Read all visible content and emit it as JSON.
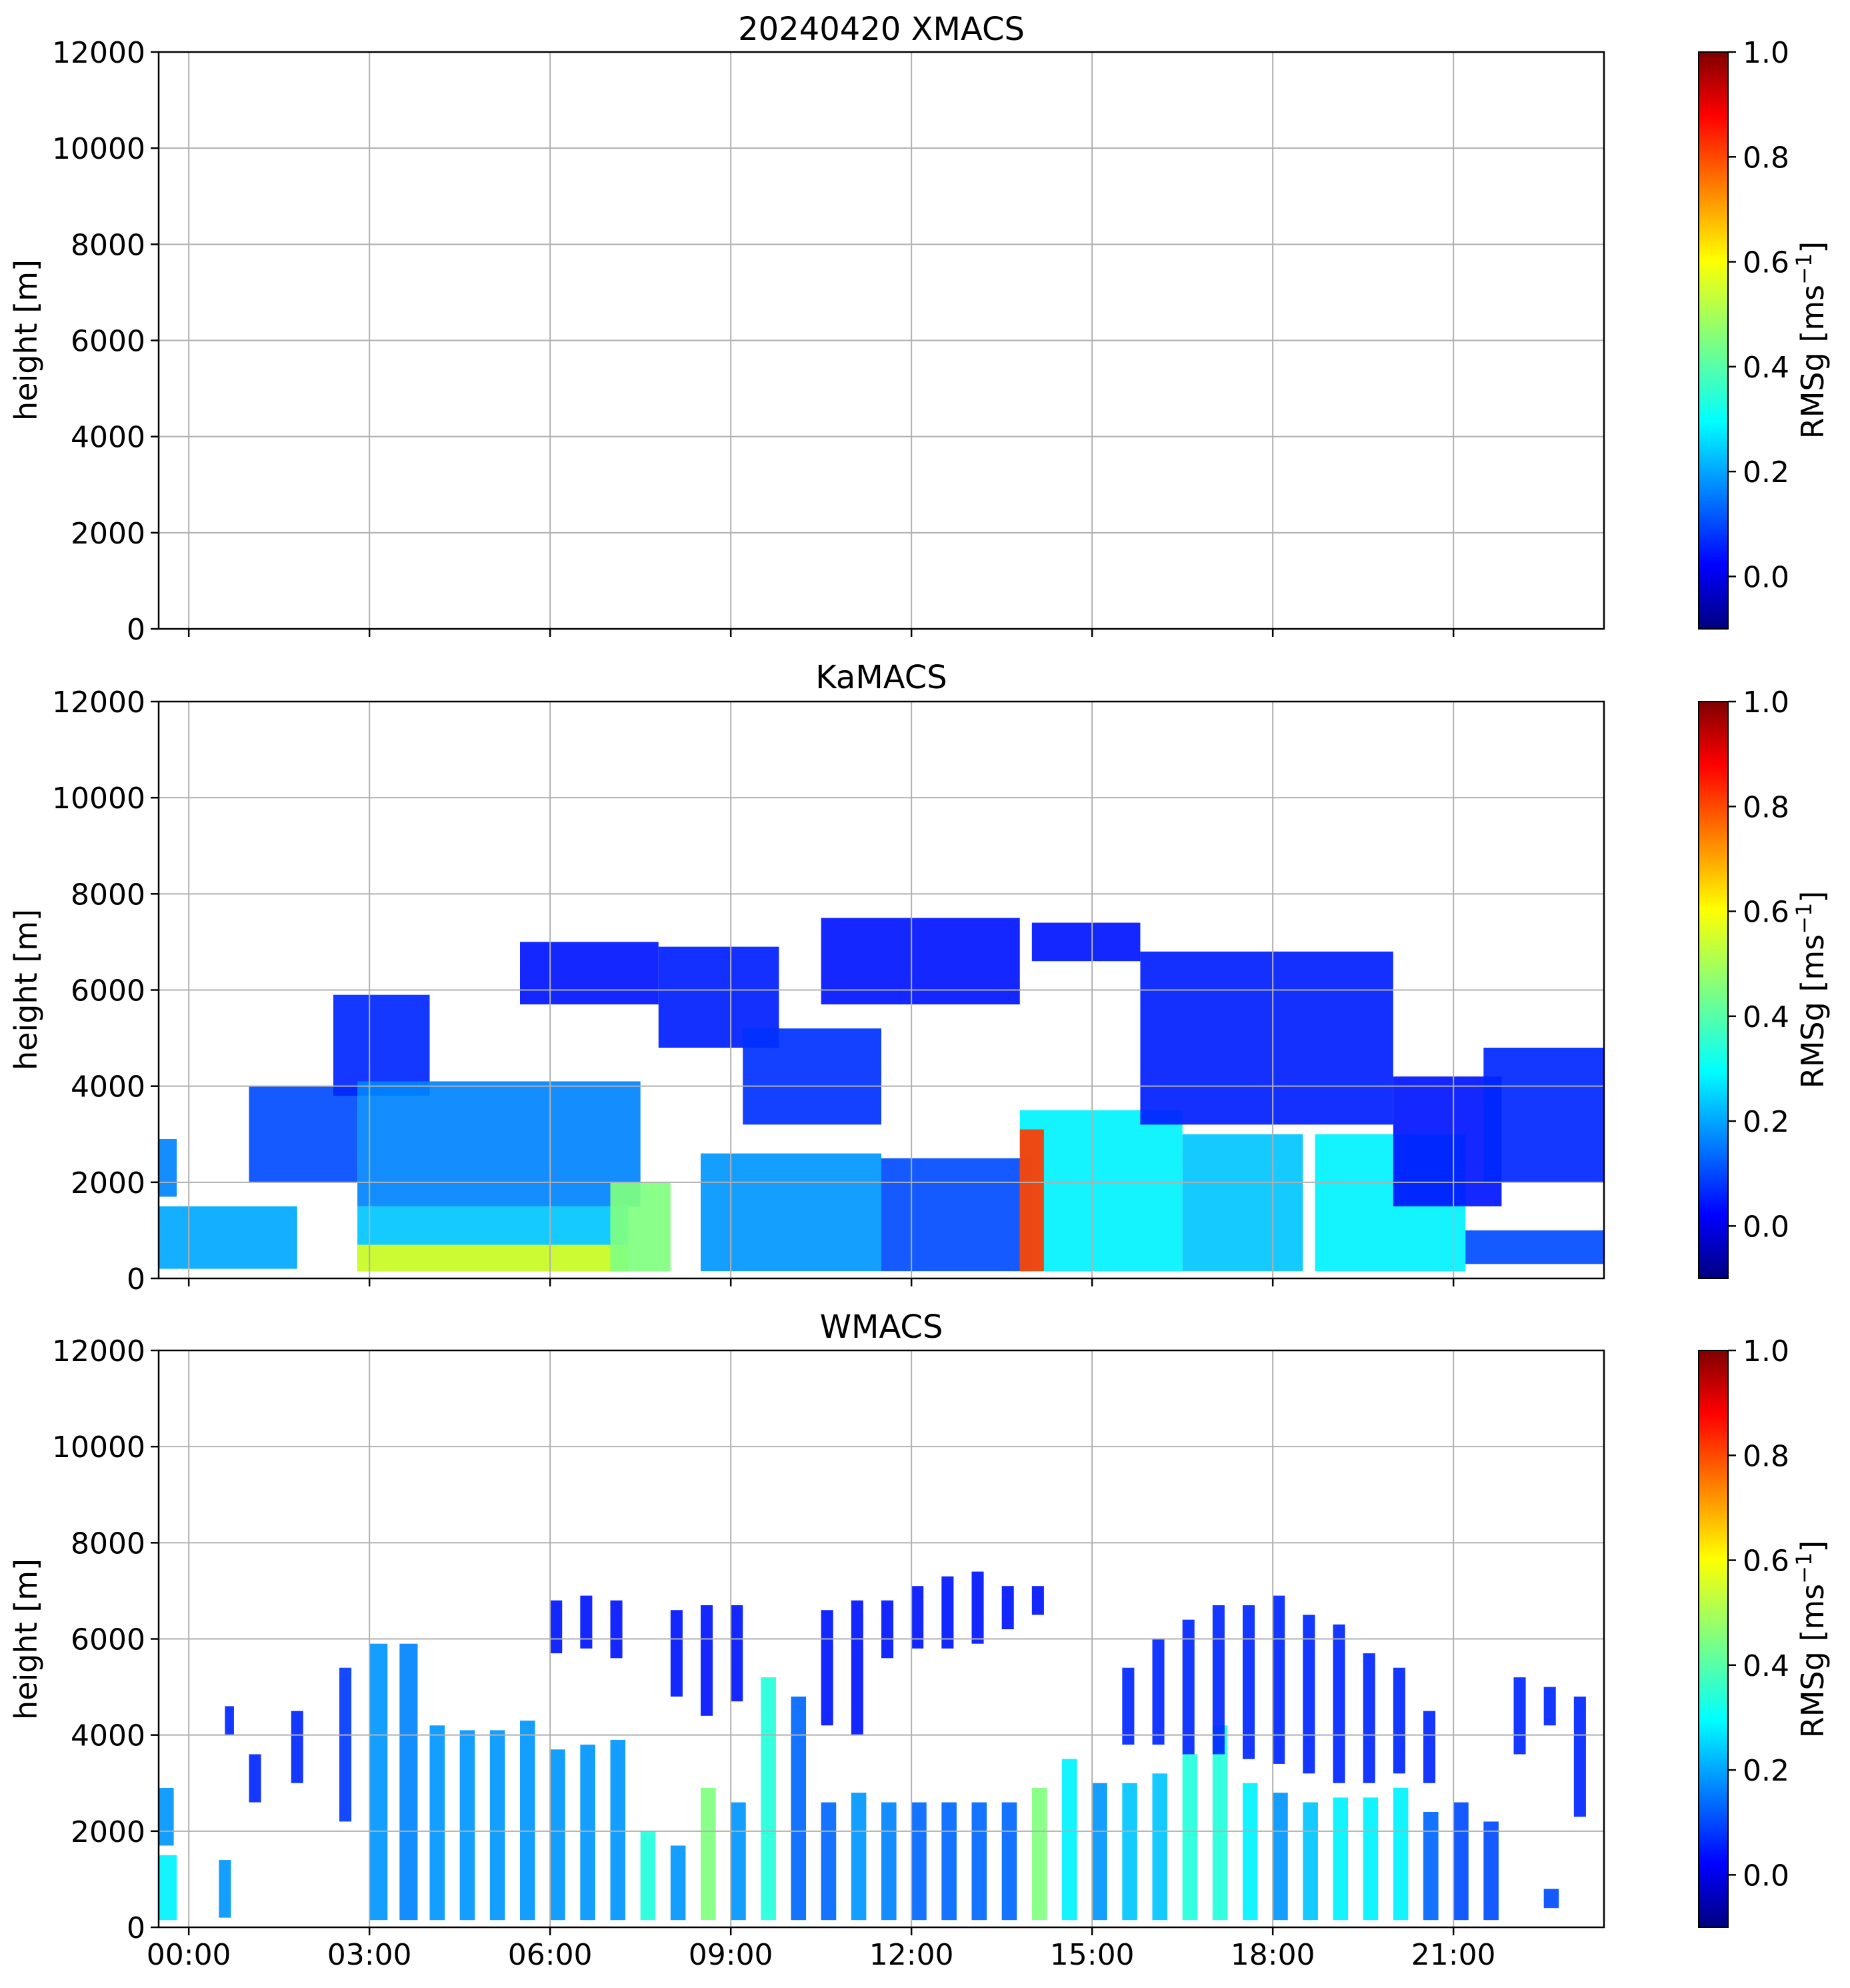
{
  "figure": {
    "panels": [
      {
        "title": "20240420 XMACS",
        "ylabel": "height [m]",
        "cbar_label": "RMSg [ms",
        "cbar_sup": "−1",
        "cbar_close": "]"
      },
      {
        "title": "KaMACS",
        "ylabel": "height [m]",
        "cbar_label": "RMSg [ms",
        "cbar_sup": "−1",
        "cbar_close": "]"
      },
      {
        "title": "WMACS",
        "ylabel": "height [m]",
        "cbar_label": "RMSg [ms",
        "cbar_sup": "−1",
        "cbar_close": "]"
      }
    ]
  },
  "chart_data": [
    {
      "type": "heatmap",
      "title": "20240420 XMACS",
      "ylabel": "height [m]",
      "ylim": [
        0,
        12000
      ],
      "yticks": [
        0,
        2000,
        4000,
        6000,
        8000,
        10000,
        12000
      ],
      "xlim_hours": [
        -0.5,
        23.5
      ],
      "xticks": [
        "00:00",
        "03:00",
        "06:00",
        "09:00",
        "12:00",
        "15:00",
        "18:00",
        "21:00"
      ],
      "xtick_labels_shown": false,
      "grid": true,
      "colormap": "jet",
      "colorbar": {
        "label": "RMSg [ms−1]",
        "range": [
          -0.1,
          1.0
        ],
        "ticks": [
          "0.0",
          "0.2",
          "0.4",
          "0.6",
          "0.8",
          "1.0"
        ]
      },
      "echo_regions": []
    },
    {
      "type": "heatmap",
      "title": "KaMACS",
      "ylabel": "height [m]",
      "ylim": [
        0,
        12000
      ],
      "yticks": [
        0,
        2000,
        4000,
        6000,
        8000,
        10000,
        12000
      ],
      "xlim_hours": [
        -0.5,
        23.5
      ],
      "xticks": [
        "00:00",
        "03:00",
        "06:00",
        "09:00",
        "12:00",
        "15:00",
        "18:00",
        "21:00"
      ],
      "xtick_labels_shown": false,
      "grid": true,
      "colormap": "jet",
      "colorbar": {
        "label": "RMSg [ms−1]",
        "range": [
          -0.1,
          1.0
        ],
        "ticks": [
          "0.0",
          "0.2",
          "0.4",
          "0.6",
          "0.8",
          "1.0"
        ]
      },
      "echo_regions": [
        {
          "t0": -0.5,
          "t1": -0.2,
          "z0": 1700,
          "z1": 2900,
          "rmsg": 0.18
        },
        {
          "t0": -0.5,
          "t1": 1.8,
          "z0": 200,
          "z1": 1500,
          "rmsg": 0.22
        },
        {
          "t0": 1.0,
          "t1": 2.8,
          "z0": 2000,
          "z1": 4000,
          "rmsg": 0.12
        },
        {
          "t0": 2.4,
          "t1": 4.0,
          "z0": 3800,
          "z1": 5900,
          "rmsg": 0.08
        },
        {
          "t0": 2.8,
          "t1": 7.5,
          "z0": 1500,
          "z1": 4100,
          "rmsg": 0.18
        },
        {
          "t0": 2.8,
          "t1": 7.3,
          "z0": 150,
          "z1": 1500,
          "rmsg": 0.25
        },
        {
          "t0": 2.8,
          "t1": 7.3,
          "z0": 150,
          "z1": 700,
          "rmsg": 0.55
        },
        {
          "t0": 7.0,
          "t1": 8.0,
          "z0": 150,
          "z1": 2000,
          "rmsg": 0.45
        },
        {
          "t0": 5.5,
          "t1": 7.8,
          "z0": 5700,
          "z1": 7000,
          "rmsg": 0.06
        },
        {
          "t0": 7.8,
          "t1": 9.8,
          "z0": 4800,
          "z1": 6900,
          "rmsg": 0.07
        },
        {
          "t0": 9.2,
          "t1": 11.5,
          "z0": 3200,
          "z1": 5200,
          "rmsg": 0.09
        },
        {
          "t0": 8.5,
          "t1": 11.5,
          "z0": 150,
          "z1": 2600,
          "rmsg": 0.2
        },
        {
          "t0": 10.5,
          "t1": 13.8,
          "z0": 5700,
          "z1": 7500,
          "rmsg": 0.06
        },
        {
          "t0": 11.5,
          "t1": 14.0,
          "z0": 150,
          "z1": 2500,
          "rmsg": 0.12
        },
        {
          "t0": 14.0,
          "t1": 15.8,
          "z0": 6600,
          "z1": 7400,
          "rmsg": 0.06
        },
        {
          "t0": 13.8,
          "t1": 16.5,
          "z0": 150,
          "z1": 3500,
          "rmsg": 0.3
        },
        {
          "t0": 13.8,
          "t1": 14.2,
          "z0": 150,
          "z1": 3100,
          "rmsg": 0.8
        },
        {
          "t0": 15.8,
          "t1": 20.0,
          "z0": 3200,
          "z1": 6800,
          "rmsg": 0.07
        },
        {
          "t0": 16.5,
          "t1": 18.5,
          "z0": 150,
          "z1": 3000,
          "rmsg": 0.25
        },
        {
          "t0": 18.7,
          "t1": 21.2,
          "z0": 150,
          "z1": 3000,
          "rmsg": 0.3
        },
        {
          "t0": 20.0,
          "t1": 21.8,
          "z0": 1500,
          "z1": 4200,
          "rmsg": 0.06
        },
        {
          "t0": 21.2,
          "t1": 23.5,
          "z0": 300,
          "z1": 1000,
          "rmsg": 0.12
        },
        {
          "t0": 21.5,
          "t1": 23.5,
          "z0": 2000,
          "z1": 4800,
          "rmsg": 0.08
        }
      ]
    },
    {
      "type": "heatmap",
      "title": "WMACS",
      "ylabel": "height [m]",
      "ylim": [
        0,
        12000
      ],
      "yticks": [
        0,
        2000,
        4000,
        6000,
        8000,
        10000,
        12000
      ],
      "xlim_hours": [
        -0.5,
        23.5
      ],
      "xticks": [
        "00:00",
        "03:00",
        "06:00",
        "09:00",
        "12:00",
        "15:00",
        "18:00",
        "21:00"
      ],
      "xtick_labels_shown": true,
      "grid": true,
      "colormap": "jet",
      "colorbar": {
        "label": "RMSg [ms−1]",
        "range": [
          -0.1,
          1.0
        ],
        "ticks": [
          "0.0",
          "0.2",
          "0.4",
          "0.6",
          "0.8",
          "1.0"
        ]
      },
      "echo_regions": [
        {
          "t0": -0.5,
          "t1": -0.25,
          "z0": 1700,
          "z1": 2900,
          "rmsg": 0.2
        },
        {
          "t0": -0.5,
          "t1": -0.2,
          "z0": 150,
          "z1": 1500,
          "rmsg": 0.3
        },
        {
          "t0": 0.5,
          "t1": 0.7,
          "z0": 200,
          "z1": 1400,
          "rmsg": 0.2
        },
        {
          "t0": 0.6,
          "t1": 0.75,
          "z0": 4000,
          "z1": 4600,
          "rmsg": 0.08
        },
        {
          "t0": 1.0,
          "t1": 1.2,
          "z0": 2600,
          "z1": 3600,
          "rmsg": 0.08
        },
        {
          "t0": 1.7,
          "t1": 1.9,
          "z0": 3000,
          "z1": 4500,
          "rmsg": 0.08
        },
        {
          "t0": 2.5,
          "t1": 2.7,
          "z0": 2200,
          "z1": 5400,
          "rmsg": 0.1
        },
        {
          "t0": 3.0,
          "t1": 3.3,
          "z0": 150,
          "z1": 5900,
          "rmsg": 0.2
        },
        {
          "t0": 3.5,
          "t1": 3.8,
          "z0": 150,
          "z1": 5900,
          "rmsg": 0.18
        },
        {
          "t0": 4.0,
          "t1": 4.25,
          "z0": 150,
          "z1": 4200,
          "rmsg": 0.2
        },
        {
          "t0": 4.5,
          "t1": 4.75,
          "z0": 150,
          "z1": 4100,
          "rmsg": 0.2
        },
        {
          "t0": 5.0,
          "t1": 5.25,
          "z0": 150,
          "z1": 4100,
          "rmsg": 0.2
        },
        {
          "t0": 5.5,
          "t1": 5.75,
          "z0": 150,
          "z1": 4300,
          "rmsg": 0.2
        },
        {
          "t0": 6.0,
          "t1": 6.25,
          "z0": 150,
          "z1": 3700,
          "rmsg": 0.2
        },
        {
          "t0": 6.5,
          "t1": 6.75,
          "z0": 150,
          "z1": 3800,
          "rmsg": 0.2
        },
        {
          "t0": 7.0,
          "t1": 7.25,
          "z0": 150,
          "z1": 3900,
          "rmsg": 0.2
        },
        {
          "t0": 7.5,
          "t1": 7.75,
          "z0": 150,
          "z1": 2000,
          "rmsg": 0.35
        },
        {
          "t0": 8.0,
          "t1": 8.25,
          "z0": 150,
          "z1": 1700,
          "rmsg": 0.2
        },
        {
          "t0": 8.5,
          "t1": 8.75,
          "z0": 150,
          "z1": 2900,
          "rmsg": 0.45
        },
        {
          "t0": 9.0,
          "t1": 9.25,
          "z0": 150,
          "z1": 2600,
          "rmsg": 0.2
        },
        {
          "t0": 9.5,
          "t1": 9.75,
          "z0": 150,
          "z1": 5200,
          "rmsg": 0.35
        },
        {
          "t0": 10.0,
          "t1": 10.25,
          "z0": 150,
          "z1": 4800,
          "rmsg": 0.15
        },
        {
          "t0": 10.5,
          "t1": 10.75,
          "z0": 150,
          "z1": 2600,
          "rmsg": 0.15
        },
        {
          "t0": 11.0,
          "t1": 11.25,
          "z0": 150,
          "z1": 2800,
          "rmsg": 0.2
        },
        {
          "t0": 11.5,
          "t1": 11.75,
          "z0": 150,
          "z1": 2600,
          "rmsg": 0.18
        },
        {
          "t0": 12.0,
          "t1": 12.25,
          "z0": 150,
          "z1": 2600,
          "rmsg": 0.15
        },
        {
          "t0": 12.5,
          "t1": 12.75,
          "z0": 150,
          "z1": 2600,
          "rmsg": 0.15
        },
        {
          "t0": 13.0,
          "t1": 13.25,
          "z0": 150,
          "z1": 2600,
          "rmsg": 0.15
        },
        {
          "t0": 13.5,
          "t1": 13.75,
          "z0": 150,
          "z1": 2600,
          "rmsg": 0.15
        },
        {
          "t0": 14.0,
          "t1": 14.25,
          "z0": 150,
          "z1": 2900,
          "rmsg": 0.45
        },
        {
          "t0": 14.5,
          "t1": 14.75,
          "z0": 150,
          "z1": 3500,
          "rmsg": 0.3
        },
        {
          "t0": 15.0,
          "t1": 15.25,
          "z0": 150,
          "z1": 3000,
          "rmsg": 0.2
        },
        {
          "t0": 15.5,
          "t1": 15.75,
          "z0": 150,
          "z1": 3000,
          "rmsg": 0.25
        },
        {
          "t0": 16.0,
          "t1": 16.25,
          "z0": 150,
          "z1": 3200,
          "rmsg": 0.25
        },
        {
          "t0": 16.5,
          "t1": 16.75,
          "z0": 150,
          "z1": 3600,
          "rmsg": 0.35
        },
        {
          "t0": 17.0,
          "t1": 17.25,
          "z0": 150,
          "z1": 4200,
          "rmsg": 0.35
        },
        {
          "t0": 17.5,
          "t1": 17.75,
          "z0": 150,
          "z1": 3000,
          "rmsg": 0.3
        },
        {
          "t0": 18.0,
          "t1": 18.25,
          "z0": 150,
          "z1": 2800,
          "rmsg": 0.2
        },
        {
          "t0": 18.5,
          "t1": 18.75,
          "z0": 150,
          "z1": 2600,
          "rmsg": 0.25
        },
        {
          "t0": 19.0,
          "t1": 19.25,
          "z0": 150,
          "z1": 2700,
          "rmsg": 0.3
        },
        {
          "t0": 19.5,
          "t1": 19.75,
          "z0": 150,
          "z1": 2700,
          "rmsg": 0.3
        },
        {
          "t0": 20.0,
          "t1": 20.25,
          "z0": 150,
          "z1": 2900,
          "rmsg": 0.3
        },
        {
          "t0": 20.5,
          "t1": 20.75,
          "z0": 150,
          "z1": 2400,
          "rmsg": 0.15
        },
        {
          "t0": 21.0,
          "t1": 21.25,
          "z0": 150,
          "z1": 2600,
          "rmsg": 0.12
        },
        {
          "t0": 21.5,
          "t1": 21.75,
          "z0": 150,
          "z1": 2200,
          "rmsg": 0.12
        },
        {
          "t0": 22.5,
          "t1": 22.75,
          "z0": 400,
          "z1": 800,
          "rmsg": 0.12
        },
        {
          "t0": 6.0,
          "t1": 6.2,
          "z0": 5700,
          "z1": 6800,
          "rmsg": 0.06
        },
        {
          "t0": 6.5,
          "t1": 6.7,
          "z0": 5800,
          "z1": 6900,
          "rmsg": 0.06
        },
        {
          "t0": 7.0,
          "t1": 7.2,
          "z0": 5600,
          "z1": 6800,
          "rmsg": 0.06
        },
        {
          "t0": 8.0,
          "t1": 8.2,
          "z0": 4800,
          "z1": 6600,
          "rmsg": 0.06
        },
        {
          "t0": 8.5,
          "t1": 8.7,
          "z0": 4400,
          "z1": 6700,
          "rmsg": 0.06
        },
        {
          "t0": 9.0,
          "t1": 9.2,
          "z0": 4700,
          "z1": 6700,
          "rmsg": 0.06
        },
        {
          "t0": 10.5,
          "t1": 10.7,
          "z0": 4200,
          "z1": 6600,
          "rmsg": 0.06
        },
        {
          "t0": 11.0,
          "t1": 11.2,
          "z0": 4000,
          "z1": 6800,
          "rmsg": 0.06
        },
        {
          "t0": 11.5,
          "t1": 11.7,
          "z0": 5600,
          "z1": 6800,
          "rmsg": 0.06
        },
        {
          "t0": 12.0,
          "t1": 12.2,
          "z0": 5800,
          "z1": 7100,
          "rmsg": 0.06
        },
        {
          "t0": 12.5,
          "t1": 12.7,
          "z0": 5800,
          "z1": 7300,
          "rmsg": 0.06
        },
        {
          "t0": 13.0,
          "t1": 13.2,
          "z0": 5900,
          "z1": 7400,
          "rmsg": 0.06
        },
        {
          "t0": 13.5,
          "t1": 13.7,
          "z0": 6200,
          "z1": 7100,
          "rmsg": 0.06
        },
        {
          "t0": 14.0,
          "t1": 14.2,
          "z0": 6500,
          "z1": 7100,
          "rmsg": 0.06
        },
        {
          "t0": 15.5,
          "t1": 15.7,
          "z0": 3800,
          "z1": 5400,
          "rmsg": 0.08
        },
        {
          "t0": 16.0,
          "t1": 16.2,
          "z0": 3800,
          "z1": 6000,
          "rmsg": 0.08
        },
        {
          "t0": 16.5,
          "t1": 16.7,
          "z0": 3600,
          "z1": 6400,
          "rmsg": 0.08
        },
        {
          "t0": 17.0,
          "t1": 17.2,
          "z0": 3600,
          "z1": 6700,
          "rmsg": 0.08
        },
        {
          "t0": 17.5,
          "t1": 17.7,
          "z0": 3500,
          "z1": 6700,
          "rmsg": 0.08
        },
        {
          "t0": 18.0,
          "t1": 18.2,
          "z0": 3400,
          "z1": 6900,
          "rmsg": 0.08
        },
        {
          "t0": 18.5,
          "t1": 18.7,
          "z0": 3200,
          "z1": 6500,
          "rmsg": 0.08
        },
        {
          "t0": 19.0,
          "t1": 19.2,
          "z0": 3000,
          "z1": 6300,
          "rmsg": 0.08
        },
        {
          "t0": 19.5,
          "t1": 19.7,
          "z0": 3000,
          "z1": 5700,
          "rmsg": 0.08
        },
        {
          "t0": 20.0,
          "t1": 20.2,
          "z0": 3200,
          "z1": 5400,
          "rmsg": 0.08
        },
        {
          "t0": 20.5,
          "t1": 20.7,
          "z0": 3000,
          "z1": 4500,
          "rmsg": 0.08
        },
        {
          "t0": 22.0,
          "t1": 22.2,
          "z0": 3600,
          "z1": 5200,
          "rmsg": 0.08
        },
        {
          "t0": 22.5,
          "t1": 22.7,
          "z0": 4200,
          "z1": 5000,
          "rmsg": 0.08
        },
        {
          "t0": 23.0,
          "t1": 23.2,
          "z0": 2300,
          "z1": 4800,
          "rmsg": 0.08
        }
      ]
    }
  ]
}
